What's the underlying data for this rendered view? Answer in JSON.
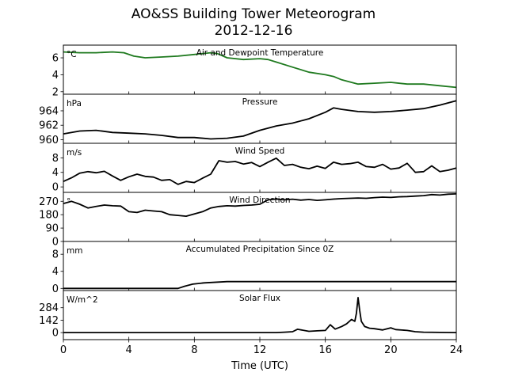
{
  "chart_data": {
    "type": "line",
    "title": "AO&SS Building Tower Meteorogram",
    "subtitle": "2012-12-16",
    "xlabel": "Time (UTC)",
    "xlim": [
      0,
      24
    ],
    "x_ticks": [
      "0",
      "4",
      "8",
      "12",
      "16",
      "20",
      "24"
    ],
    "panels": [
      {
        "name": "temperature",
        "title": "Air and Dewpoint Temperature",
        "unit": "°C",
        "ylim": [
          1.7,
          7.5
        ],
        "y_ticks": [
          2,
          4,
          6
        ],
        "color": "#1f7a1f",
        "x": [
          0,
          1,
          2,
          3,
          3.7,
          4.3,
          5,
          6,
          7,
          8,
          9,
          9.4,
          10,
          11,
          12,
          12.5,
          13,
          14,
          15,
          16,
          16.5,
          17,
          18,
          19,
          20,
          21,
          22,
          23,
          24
        ],
        "values": [
          6.7,
          6.6,
          6.6,
          6.7,
          6.6,
          6.2,
          6.0,
          6.1,
          6.2,
          6.4,
          6.6,
          6.5,
          6.0,
          5.8,
          5.9,
          5.8,
          5.5,
          4.9,
          4.3,
          4.0,
          3.8,
          3.4,
          2.9,
          3.0,
          3.1,
          2.9,
          2.9,
          2.7,
          2.5
        ]
      },
      {
        "name": "pressure",
        "title": "Pressure",
        "unit": "hPa",
        "ylim": [
          959.5,
          966.3
        ],
        "y_ticks": [
          960,
          962,
          964
        ],
        "color": "#000000",
        "x": [
          0,
          1,
          2,
          3,
          4,
          5,
          6,
          7,
          8,
          9,
          10,
          11,
          12,
          13,
          14,
          15,
          16,
          16.5,
          17,
          18,
          19,
          20,
          21,
          22,
          23,
          24
        ],
        "values": [
          960.8,
          961.2,
          961.3,
          961.0,
          960.9,
          960.8,
          960.6,
          960.3,
          960.3,
          960.1,
          960.2,
          960.5,
          961.3,
          961.9,
          962.3,
          962.9,
          963.8,
          964.4,
          964.2,
          963.9,
          963.8,
          963.9,
          964.1,
          964.3,
          964.8,
          965.4
        ]
      },
      {
        "name": "wind_speed",
        "title": "Wind Speed",
        "unit": "m/s",
        "ylim": [
          -1.5,
          12
        ],
        "y_ticks": [
          0,
          4,
          8
        ],
        "color": "#000000",
        "x": [
          0,
          0.5,
          1,
          1.5,
          2,
          2.5,
          3,
          3.5,
          4,
          4.5,
          5,
          5.5,
          6,
          6.5,
          7,
          7.5,
          8,
          8.5,
          9,
          9.5,
          10,
          10.5,
          11,
          11.5,
          12,
          12.5,
          13,
          13.5,
          14,
          14.5,
          15,
          15.5,
          16,
          16.5,
          17,
          17.5,
          18,
          18.5,
          19,
          19.5,
          20,
          20.5,
          21,
          21.5,
          22,
          22.5,
          23,
          23.5,
          24
        ],
        "values": [
          1.5,
          2.5,
          3.8,
          4.2,
          3.9,
          4.3,
          3.0,
          1.8,
          2.8,
          3.5,
          2.9,
          2.7,
          1.8,
          2.0,
          0.7,
          1.5,
          1.2,
          2.4,
          3.5,
          7.2,
          6.8,
          7.0,
          6.3,
          6.7,
          5.6,
          6.8,
          7.9,
          5.9,
          6.2,
          5.4,
          5.0,
          5.7,
          5.1,
          6.8,
          6.2,
          6.4,
          6.8,
          5.6,
          5.4,
          6.2,
          4.9,
          5.2,
          6.5,
          4.0,
          4.2,
          5.8,
          4.2,
          4.6,
          5.2
        ]
      },
      {
        "name": "wind_direction",
        "title": "Wind Direction",
        "unit": "°",
        "ylim": [
          0,
          330
        ],
        "y_ticks": [
          0,
          90,
          180,
          270
        ],
        "color": "#000000",
        "x": [
          0,
          0.5,
          1,
          1.5,
          2,
          2.5,
          3,
          3.5,
          4,
          4.5,
          5,
          5.5,
          6,
          6.5,
          7,
          7.5,
          8,
          8.5,
          9,
          9.5,
          10,
          10.5,
          11,
          11.5,
          12,
          12.5,
          13,
          13.5,
          14,
          14.5,
          15,
          15.5,
          16,
          16.5,
          17,
          17.5,
          18,
          18.5,
          19,
          19.5,
          20,
          20.5,
          21,
          21.5,
          22,
          22.5,
          23,
          23.5,
          24
        ],
        "values": [
          255,
          270,
          250,
          225,
          235,
          245,
          240,
          238,
          200,
          195,
          210,
          205,
          200,
          180,
          175,
          170,
          185,
          200,
          225,
          235,
          240,
          238,
          242,
          245,
          250,
          280,
          285,
          280,
          284,
          278,
          282,
          276,
          280,
          285,
          288,
          290,
          292,
          290,
          295,
          298,
          296,
          300,
          302,
          305,
          308,
          315,
          312,
          318,
          320
        ]
      },
      {
        "name": "precipitation",
        "title": "Accumulated Precipitation Since 0Z",
        "unit": "mm",
        "ylim": [
          -0.5,
          11
        ],
        "y_ticks": [
          0,
          4,
          8
        ],
        "color": "#000000",
        "x": [
          0,
          7,
          7.4,
          7.9,
          8.6,
          10,
          24
        ],
        "values": [
          0,
          0,
          0.5,
          1.0,
          1.3,
          1.6,
          1.6
        ]
      },
      {
        "name": "solar_flux",
        "title": "Solar Flux",
        "unit": "W/m^2",
        "ylim": [
          -80,
          480
        ],
        "y_ticks": [
          0,
          142,
          284
        ],
        "color": "#000000",
        "x": [
          0,
          13,
          13.5,
          14,
          14.3,
          15,
          15.5,
          16,
          16.3,
          16.6,
          17,
          17.3,
          17.6,
          17.8,
          17.9,
          18,
          18.1,
          18.2,
          18.4,
          18.7,
          19,
          19.5,
          20,
          20.3,
          21,
          21.5,
          22,
          23,
          24
        ],
        "values": [
          0,
          0,
          5,
          10,
          38,
          15,
          20,
          25,
          90,
          40,
          70,
          100,
          150,
          130,
          220,
          400,
          250,
          130,
          70,
          50,
          45,
          30,
          55,
          35,
          25,
          10,
          5,
          2,
          0
        ]
      }
    ]
  }
}
